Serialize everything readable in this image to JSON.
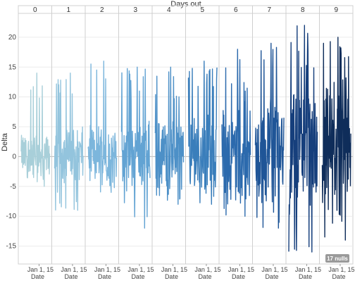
{
  "chart_data": {
    "type": "line",
    "column_title": "Days out",
    "ylabel": "Delta",
    "ylim": [
      -18,
      24
    ],
    "y_ticks": [
      20,
      15,
      10,
      5,
      0,
      -5,
      -10,
      -15
    ],
    "panels": [
      "0",
      "1",
      "2",
      "3",
      "4",
      "5",
      "6",
      "7",
      "8",
      "9"
    ],
    "panel_colors": [
      "#a8cfd9",
      "#93c4dd",
      "#7cb6dc",
      "#62a3d3",
      "#4d90c7",
      "#3a7ebb",
      "#2c6aad",
      "#1f5597",
      "#163f7c",
      "#0f2d5a"
    ],
    "x_tick_label": "Jan 1, 15",
    "x_title": "Date",
    "nulls_badge": "17 nulls",
    "series": [
      {
        "panel": "0",
        "peak_max": 14,
        "peak_min": -5,
        "typical_amplitude": 3
      },
      {
        "panel": "1",
        "peak_max": 14,
        "peak_min": -9,
        "typical_amplitude": 4
      },
      {
        "panel": "2",
        "peak_max": 16,
        "peak_min": -6,
        "typical_amplitude": 4
      },
      {
        "panel": "3",
        "peak_max": 15,
        "peak_min": -12,
        "typical_amplitude": 5
      },
      {
        "panel": "4",
        "peak_max": 15,
        "peak_min": -8,
        "typical_amplitude": 5
      },
      {
        "panel": "5",
        "peak_max": 16,
        "peak_min": -8,
        "typical_amplitude": 6
      },
      {
        "panel": "6",
        "peak_max": 18,
        "peak_min": -10,
        "typical_amplitude": 7
      },
      {
        "panel": "7",
        "peak_max": 19,
        "peak_min": -12,
        "typical_amplitude": 8
      },
      {
        "panel": "8",
        "peak_max": 22,
        "peak_min": -16,
        "typical_amplitude": 9
      },
      {
        "panel": "9",
        "peak_max": 20,
        "peak_min": -14,
        "typical_amplitude": 9
      }
    ]
  }
}
